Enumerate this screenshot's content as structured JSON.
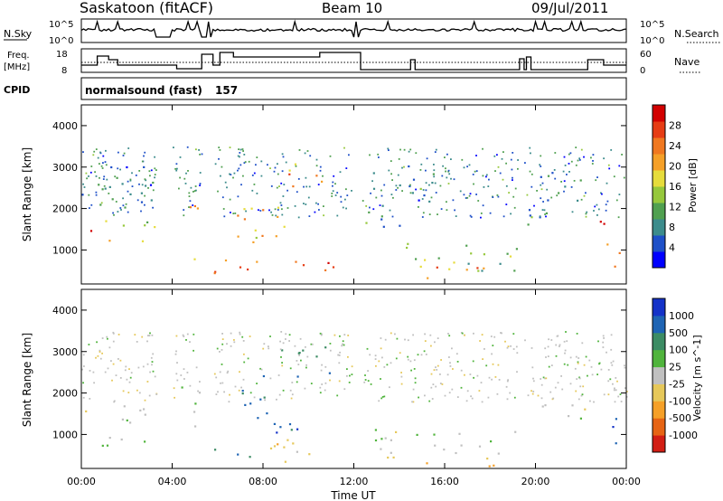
{
  "header": {
    "station": "Saskatoon (fitACF)",
    "beam": "Beam 10",
    "date": "09/Jul/2011"
  },
  "noise_panel": {
    "left_label": "N.Sky",
    "right_label": "N.Search",
    "left_ticks": [
      "10^5",
      "10^0"
    ],
    "right_ticks": [
      "10^5",
      "10^0"
    ]
  },
  "freq_panel": {
    "left_label_line1": "Freq.",
    "left_label_line2": "[MHz]",
    "right_label": "Nave",
    "left_ticks": [
      "18",
      "8"
    ],
    "right_ticks": [
      "60",
      "0"
    ]
  },
  "cpid": {
    "label": "CPID",
    "mode": "normalsound (fast)",
    "id": "157"
  },
  "power_panel": {
    "ylabel": "Slant Range [km]",
    "yticks": [
      "4000",
      "3000",
      "2000",
      "1000"
    ],
    "colorbar_label": "Power [dB]",
    "colorbar_ticks": [
      "28",
      "24",
      "20",
      "16",
      "12",
      "8",
      "4"
    ]
  },
  "velocity_panel": {
    "ylabel": "Slant Range [km]",
    "yticks": [
      "4000",
      "3000",
      "2000",
      "1000"
    ],
    "colorbar_label": "Velocity [m s^-1]",
    "colorbar_ticks": [
      "1000",
      "500",
      "100",
      "25",
      "-25",
      "-100",
      "-500",
      "-1000"
    ]
  },
  "xaxis": {
    "label": "Time UT",
    "ticks": [
      "00:00",
      "04:00",
      "08:00",
      "12:00",
      "16:00",
      "20:00",
      "00:00"
    ]
  },
  "chart_data": {
    "type": "heatmap",
    "title": "Saskatoon (fitACF) Beam 10 09/Jul/2011",
    "xlabel": "Time UT",
    "ylabel": "Slant Range [km]",
    "xlim": [
      "00:00",
      "24:00"
    ],
    "ylim": [
      180,
      4500
    ],
    "grid": false,
    "colors": {
      "power_scale": [
        "#0000ff",
        "#1e50c8",
        "#3c8c8c",
        "#50a050",
        "#96c83c",
        "#e6dc3c",
        "#f5a028",
        "#f07820",
        "#e63c14",
        "#d20000"
      ],
      "velocity_scale": [
        "#1432c8",
        "#1e64b4",
        "#3c8c64",
        "#50b43c",
        "#c0c0c0",
        "#e6c85a",
        "#f5a028",
        "#e66414",
        "#d21e14"
      ]
    },
    "data_gaps_hours": [
      [
        3.3,
        4.0
      ],
      [
        5.3,
        5.8
      ],
      [
        11.9,
        12.3
      ],
      [
        19.2,
        19.5
      ]
    ],
    "power_blobs": [
      {
        "t0": 0.0,
        "t1": 0.6,
        "r0": 1300,
        "r1": 1900,
        "level": 26
      },
      {
        "t0": 0.6,
        "t1": 3.2,
        "r0": 1100,
        "r1": 1800,
        "level": 14
      },
      {
        "t0": 0.0,
        "t1": 3.2,
        "r0": 1900,
        "r1": 3500,
        "level": 6
      },
      {
        "t0": 4.0,
        "t1": 5.2,
        "r0": 1600,
        "r1": 2300,
        "level": 22
      },
      {
        "t0": 4.0,
        "t1": 5.2,
        "r0": 500,
        "r1": 800,
        "level": 14
      },
      {
        "t0": 5.8,
        "t1": 11.9,
        "r0": 350,
        "r1": 800,
        "level": 22
      },
      {
        "t0": 6.5,
        "t1": 9.5,
        "r0": 1200,
        "r1": 2400,
        "level": 16
      },
      {
        "t0": 8.5,
        "t1": 11.0,
        "r0": 2500,
        "r1": 3100,
        "level": 18
      },
      {
        "t0": 12.3,
        "t1": 19.2,
        "r0": 500,
        "r1": 1200,
        "level": 10
      },
      {
        "t0": 14.5,
        "t1": 18.0,
        "r0": 300,
        "r1": 650,
        "level": 20
      },
      {
        "t0": 12.5,
        "t1": 15.5,
        "r0": 1500,
        "r1": 3200,
        "level": 6
      },
      {
        "t0": 22.2,
        "t1": 23.0,
        "r0": 1200,
        "r1": 1900,
        "level": 26
      },
      {
        "t0": 23.0,
        "t1": 24.0,
        "r0": 600,
        "r1": 1300,
        "level": 18
      },
      {
        "t0": 19.5,
        "t1": 22.0,
        "r0": 1600,
        "r1": 3000,
        "level": 6
      }
    ],
    "velocity_blobs": [
      {
        "t0": 0.0,
        "t1": 0.6,
        "r0": 1300,
        "r1": 1900,
        "v": -100
      },
      {
        "t0": 0.6,
        "t1": 3.2,
        "r0": 800,
        "r1": 1800,
        "v": 0
      },
      {
        "t0": 0.5,
        "t1": 2.0,
        "r0": 400,
        "r1": 800,
        "v": 100
      },
      {
        "t0": 4.0,
        "t1": 5.2,
        "r0": 1200,
        "r1": 2300,
        "v": 0
      },
      {
        "t0": 5.8,
        "t1": 8.0,
        "r0": 350,
        "r1": 700,
        "v": 100
      },
      {
        "t0": 8.0,
        "t1": 11.9,
        "r0": 300,
        "r1": 900,
        "v": -100
      },
      {
        "t0": 7.0,
        "t1": 9.5,
        "r0": 1000,
        "r1": 2600,
        "v": 500
      },
      {
        "t0": 8.5,
        "t1": 11.0,
        "r0": 2500,
        "r1": 3200,
        "v": 100
      },
      {
        "t0": 12.3,
        "t1": 19.2,
        "r0": 500,
        "r1": 1200,
        "v": 0
      },
      {
        "t0": 13.0,
        "t1": 19.2,
        "r0": 250,
        "r1": 500,
        "v": -100
      },
      {
        "t0": 20.0,
        "t1": 22.5,
        "r0": 1300,
        "r1": 1900,
        "v": 0
      },
      {
        "t0": 23.0,
        "t1": 24.0,
        "r0": 600,
        "r1": 1400,
        "v": 500
      }
    ]
  }
}
